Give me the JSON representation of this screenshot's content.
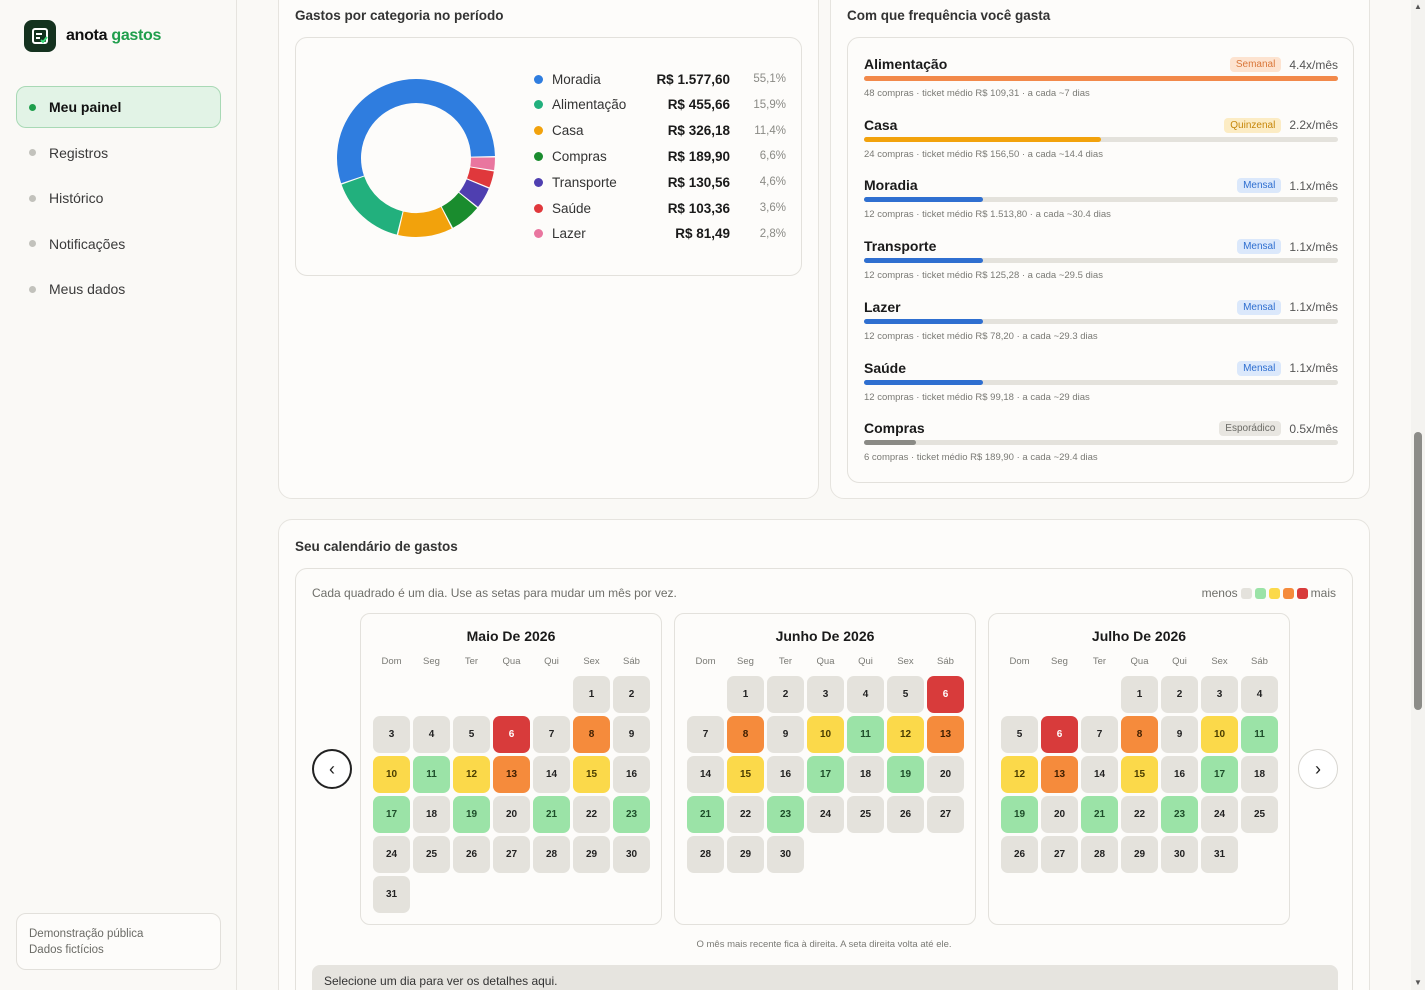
{
  "brand": {
    "name_a": "anota",
    "name_b": "gastos"
  },
  "nav": [
    {
      "label": "Meu painel",
      "active": true
    },
    {
      "label": "Registros",
      "active": false
    },
    {
      "label": "Histórico",
      "active": false
    },
    {
      "label": "Notificações",
      "active": false
    },
    {
      "label": "Meus dados",
      "active": false
    }
  ],
  "demo": {
    "line1": "Demonstração pública",
    "line2": "Dados fictícios"
  },
  "category_card": {
    "title": "Gastos por categoria no período",
    "chart_data": {
      "type": "pie",
      "donut": true,
      "categories": [
        "Moradia",
        "Alimentação",
        "Casa",
        "Compras",
        "Transporte",
        "Saúde",
        "Lazer"
      ],
      "values": [
        1577.6,
        455.66,
        326.18,
        189.9,
        130.56,
        103.36,
        81.49
      ],
      "value_labels": [
        "R$ 1.577,60",
        "R$ 455,66",
        "R$ 326,18",
        "R$ 189,90",
        "R$ 130,56",
        "R$ 103,36",
        "R$ 81,49"
      ],
      "percent_labels": [
        "55,1%",
        "15,9%",
        "11,4%",
        "6,6%",
        "4,6%",
        "3,6%",
        "2,8%"
      ],
      "colors": [
        "#2f7ddf",
        "#22b07d",
        "#f2a20c",
        "#1a8c2e",
        "#4f3fb0",
        "#e0383c",
        "#e9769f"
      ],
      "legend_position": "right"
    }
  },
  "frequency_card": {
    "title": "Com que frequência você gasta",
    "items": [
      {
        "name": "Alimentação",
        "badge": "Semanal",
        "rate": "4.4x/mês",
        "fill": 1.0,
        "color": "#f2894a",
        "badge_bg": "#fde3d0",
        "badge_fg": "#d9773a",
        "sub": "48 compras · ticket médio R$ 109,31 · a cada ~7 dias"
      },
      {
        "name": "Casa",
        "badge": "Quinzenal",
        "rate": "2.2x/mês",
        "fill": 0.5,
        "color": "#f2a20c",
        "badge_bg": "#fcecc4",
        "badge_fg": "#c6860a",
        "sub": "24 compras · ticket médio R$ 156,50 · a cada ~14.4 dias"
      },
      {
        "name": "Moradia",
        "badge": "Mensal",
        "rate": "1.1x/mês",
        "fill": 0.25,
        "color": "#2f6fd0",
        "badge_bg": "#dbe8fb",
        "badge_fg": "#2f6fd0",
        "sub": "12 compras · ticket médio R$ 1.513,80 · a cada ~30.4 dias"
      },
      {
        "name": "Transporte",
        "badge": "Mensal",
        "rate": "1.1x/mês",
        "fill": 0.25,
        "color": "#2f6fd0",
        "badge_bg": "#dbe8fb",
        "badge_fg": "#2f6fd0",
        "sub": "12 compras · ticket médio R$ 125,28 · a cada ~29.5 dias"
      },
      {
        "name": "Lazer",
        "badge": "Mensal",
        "rate": "1.1x/mês",
        "fill": 0.25,
        "color": "#2f6fd0",
        "badge_bg": "#dbe8fb",
        "badge_fg": "#2f6fd0",
        "sub": "12 compras · ticket médio R$ 78,20 · a cada ~29.3 dias"
      },
      {
        "name": "Saúde",
        "badge": "Mensal",
        "rate": "1.1x/mês",
        "fill": 0.25,
        "color": "#2f6fd0",
        "badge_bg": "#dbe8fb",
        "badge_fg": "#2f6fd0",
        "sub": "12 compras · ticket médio R$ 99,18 · a cada ~29 dias"
      },
      {
        "name": "Compras",
        "badge": "Esporádico",
        "rate": "0.5x/mês",
        "fill": 0.11,
        "color": "#8a8a85",
        "badge_bg": "#e8e6e1",
        "badge_fg": "#6b6b66",
        "sub": "6 compras · ticket médio R$ 189,90 · a cada ~29.4 dias"
      }
    ]
  },
  "calendar": {
    "title": "Seu calendário de gastos",
    "note": "Cada quadrado é um dia. Use as setas para mudar um mês por vez.",
    "scale_less": "menos",
    "scale_more": "mais",
    "scale_colors": [
      "#e4e2dc",
      "#9be3a7",
      "#fbd94a",
      "#f58b3c",
      "#d83b3b"
    ],
    "weekdays": [
      "Dom",
      "Seg",
      "Ter",
      "Qua",
      "Qui",
      "Sex",
      "Sáb"
    ],
    "prev_icon": "‹",
    "next_icon": "›",
    "months": [
      {
        "title": "Maio De 2026",
        "start": 5,
        "levels": [
          0,
          0,
          0,
          0,
          0,
          4,
          0,
          3,
          0,
          2,
          1,
          2,
          3,
          0,
          2,
          0,
          1,
          0,
          1,
          0,
          1,
          0,
          1,
          0,
          0,
          0,
          0,
          0,
          0,
          0,
          0
        ]
      },
      {
        "title": "Junho De 2026",
        "start": 1,
        "levels": [
          0,
          0,
          0,
          0,
          0,
          4,
          0,
          3,
          0,
          2,
          1,
          2,
          3,
          0,
          2,
          0,
          1,
          0,
          1,
          0,
          1,
          0,
          1,
          0,
          0,
          0,
          0,
          0,
          0,
          0
        ]
      },
      {
        "title": "Julho De 2026",
        "start": 3,
        "levels": [
          0,
          0,
          0,
          0,
          0,
          4,
          0,
          3,
          0,
          2,
          1,
          2,
          3,
          0,
          2,
          0,
          1,
          0,
          1,
          0,
          1,
          0,
          1,
          0,
          0,
          0,
          0,
          0,
          0,
          0,
          0
        ]
      }
    ],
    "foot_note": "O mês mais recente fica à direita. A seta direita volta até ele.",
    "detail_placeholder": "Selecione um dia para ver os detalhes aqui."
  }
}
